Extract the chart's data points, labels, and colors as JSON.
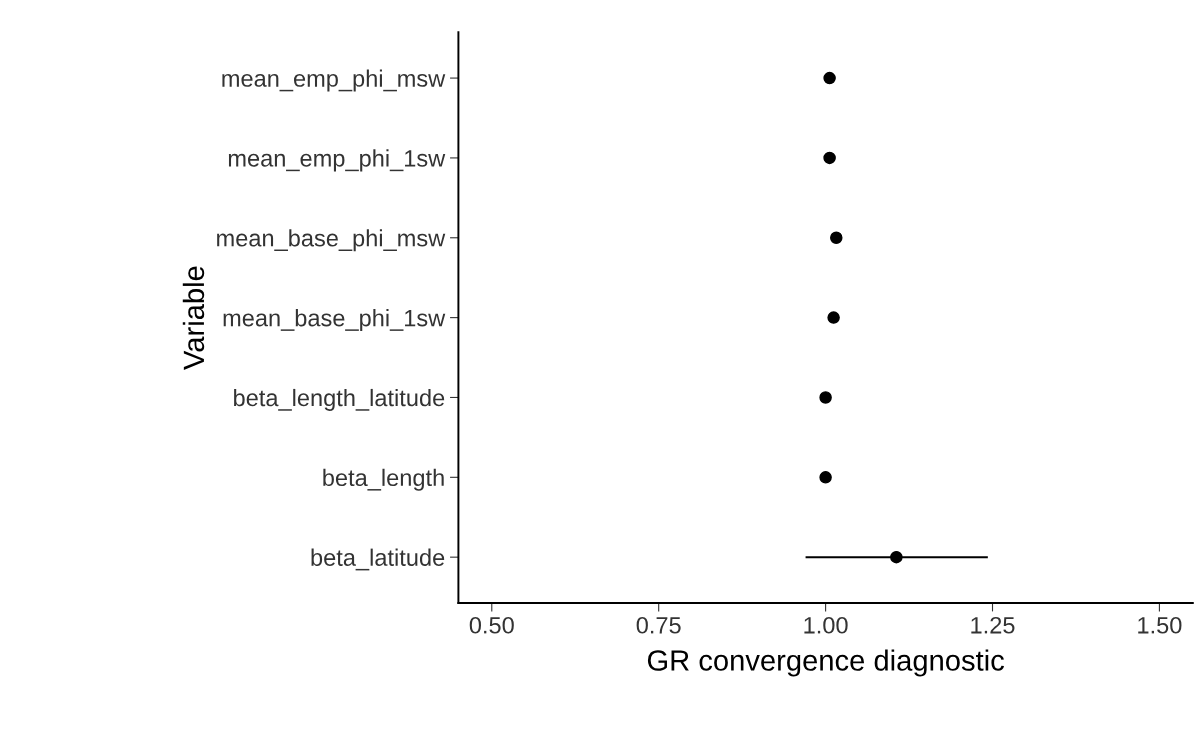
{
  "chart_data": {
    "type": "scatter",
    "orientation": "horizontal",
    "xlabel": "GR convergence diagnostic",
    "ylabel": "Variable",
    "categories": [
      "mean_emp_phi_msw",
      "mean_emp_phi_1sw",
      "mean_base_phi_msw",
      "mean_base_phi_1sw",
      "beta_length_latitude",
      "beta_length",
      "beta_latitude"
    ],
    "color": "#000000",
    "values": [
      1.006,
      1.006,
      1.016,
      1.012,
      1.0,
      1.0,
      1.106
    ],
    "errors": [
      null,
      null,
      null,
      null,
      null,
      null,
      [
        0.97,
        1.243
      ]
    ],
    "xlim": [
      0.45,
      1.55
    ],
    "xticks": [
      {
        "value": 0.5,
        "label": "0.50"
      },
      {
        "value": 0.75,
        "label": "0.75"
      },
      {
        "value": 1.0,
        "label": "1.00"
      },
      {
        "value": 1.25,
        "label": "1.25"
      },
      {
        "value": 1.5,
        "label": "1.50"
      }
    ],
    "marker": "circle",
    "grid": false,
    "legend": false
  }
}
